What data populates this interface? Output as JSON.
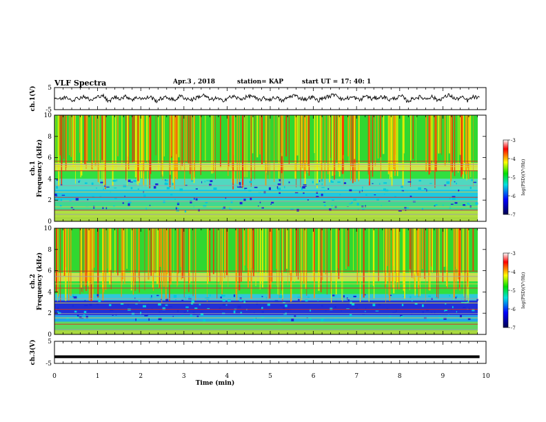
{
  "header": {
    "title": "VLF Spectra",
    "date": "Apr.3 , 2018",
    "station_label": "station= KAP",
    "start_label": "start UT =",
    "start_time": "17: 40: 1"
  },
  "chart_data": [
    {
      "type": "line",
      "panel": "ch1-waveform",
      "ylabel": "ch.1(V)",
      "ylim": [
        -5,
        5
      ],
      "yticks": [
        "5",
        "-5"
      ],
      "xlim": [
        0,
        10
      ],
      "series": [
        {
          "values": [
            0.5,
            -0.3,
            0.8,
            -0.6,
            0.2,
            1.1,
            -0.9,
            0.4,
            1.8,
            -1.5,
            0.7,
            0.1,
            1.0,
            -0.4,
            0.6,
            -0.2,
            0.9,
            -1.1,
            0.3,
            0.5,
            -0.8,
            1.2,
            0.0,
            -0.5,
            0.8,
            1.5,
            -0.6,
            0.2,
            -1.0,
            0.4,
            0.9,
            -0.3,
            0.6,
            1.3,
            -0.7,
            0.1,
            -0.4,
            0.7,
            -1.2,
            0.5,
            1.6,
            0.2,
            -0.3,
            0.8,
            -0.9,
            0.4,
            1.0,
            2.2,
            -0.5,
            0.3,
            0.6,
            -0.8,
            1.4,
            -0.2,
            0.5,
            0.9,
            -0.6,
            0.3,
            1.1,
            -1.3,
            0.2,
            0.7,
            -0.1,
            1.0,
            -0.7,
            0.4,
            1.7,
            -0.4,
            0.6,
            -0.9,
            0.8,
            0.1
          ]
        }
      ]
    },
    {
      "type": "heatmap",
      "panel": "ch1-spectrogram",
      "ylabel": "ch.1\nFrequency (kHz)",
      "ylim": [
        0,
        10
      ],
      "yticks": [
        "0",
        "2",
        "4",
        "6",
        "8",
        "10"
      ],
      "xlim": [
        0,
        10
      ],
      "colorbar": {
        "label": "log(PSD)(V²/Hz)",
        "range": [
          -7,
          -3
        ],
        "ticks": [
          "-3",
          "-4",
          "-5",
          "-6",
          "-7"
        ]
      }
    },
    {
      "type": "heatmap",
      "panel": "ch2-spectrogram",
      "ylabel": "ch.2\nFrequency (kHz)",
      "ylim": [
        0,
        10
      ],
      "yticks": [
        "0",
        "2",
        "4",
        "6",
        "8",
        "10"
      ],
      "xlim": [
        0,
        10
      ],
      "colorbar": {
        "label": "log(PSD)(V²/Hz)",
        "range": [
          -7,
          -3
        ],
        "ticks": [
          "-3",
          "-4",
          "-5",
          "-6",
          "-7"
        ]
      }
    },
    {
      "type": "line",
      "panel": "ch3-waveform",
      "ylabel": "ch.3(V)",
      "ylim": [
        -5,
        5
      ],
      "yticks": [
        "5",
        "-5"
      ],
      "xlabel": "Time (min)",
      "xlim": [
        0,
        10
      ],
      "xticks": [
        "0",
        "1",
        "2",
        "3",
        "4",
        "5",
        "6",
        "7",
        "8",
        "9",
        "10"
      ],
      "series": [
        {
          "x": [
            0,
            9.85
          ],
          "values": [
            -2,
            -2
          ]
        }
      ]
    }
  ],
  "colors": {
    "red": "#ff2000",
    "yellow": "#f0f000",
    "green": "#30e020",
    "cyan": "#00d8e8",
    "blue": "#1010d0",
    "axis": "#000000"
  }
}
